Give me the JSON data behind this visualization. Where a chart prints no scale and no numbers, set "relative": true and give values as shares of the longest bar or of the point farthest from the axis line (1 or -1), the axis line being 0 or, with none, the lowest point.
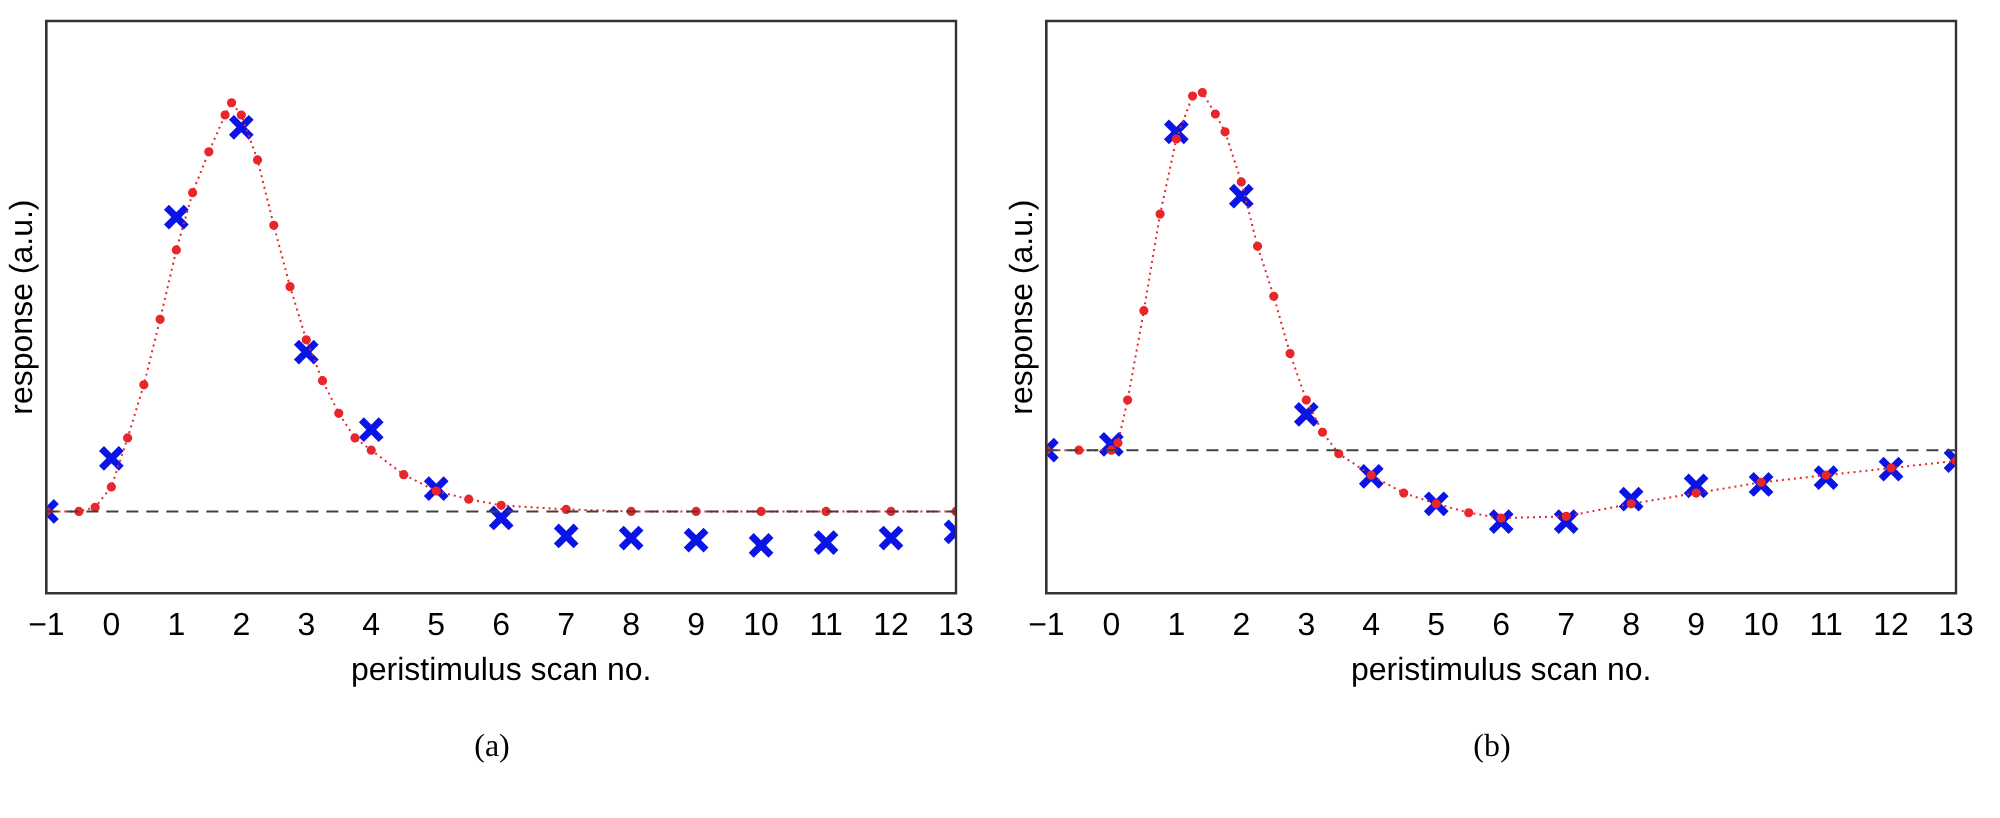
{
  "chart_data": [
    {
      "type": "line",
      "relative": true,
      "xlabel": "peristimulus scan no.",
      "ylabel": "response (a.u.)",
      "xlim": [
        -1,
        13
      ],
      "xticks": [
        -1,
        0,
        1,
        2,
        3,
        4,
        5,
        6,
        7,
        8,
        9,
        10,
        11,
        12,
        13
      ],
      "grid": false,
      "legend": false,
      "annotations": [
        "(a)"
      ],
      "ref_lines": [
        {
          "axis": "y",
          "value": 0,
          "color": "#404040",
          "line_style": "dashed"
        }
      ],
      "series": [
        {
          "color": "#e8262b",
          "marker": "circle",
          "line_style": "dotted",
          "x": [
            -1,
            -0.5,
            -0.25,
            0,
            0.25,
            0.5,
            0.75,
            1,
            1.25,
            1.5,
            1.75,
            1.85,
            2,
            2.25,
            2.5,
            2.75,
            3,
            3.25,
            3.5,
            3.75,
            4,
            4.5,
            5,
            5.5,
            6,
            7,
            8,
            9,
            10,
            11,
            12,
            13
          ],
          "values": [
            0,
            0,
            0.01,
            0.06,
            0.18,
            0.31,
            0.47,
            0.64,
            0.78,
            0.88,
            0.97,
            1,
            0.97,
            0.86,
            0.7,
            0.55,
            0.42,
            0.32,
            0.24,
            0.18,
            0.15,
            0.09,
            0.05,
            0.03,
            0.015,
            0.005,
            0,
            0,
            0,
            0,
            0,
            0
          ]
        },
        {
          "type": "scatter",
          "color": "#0b14e6",
          "marker": "cross",
          "x": [
            -1,
            0,
            1,
            2,
            3,
            4,
            5,
            6,
            7,
            8,
            9,
            10,
            11,
            12,
            13
          ],
          "values": [
            0,
            0.13,
            0.72,
            0.94,
            0.39,
            0.2,
            0.056,
            -0.016,
            -0.06,
            -0.065,
            -0.07,
            -0.083,
            -0.076,
            -0.065,
            -0.05
          ]
        }
      ]
    },
    {
      "type": "line",
      "relative": true,
      "xlabel": "peristimulus scan no.",
      "ylabel": "response (a.u.)",
      "xlim": [
        -1,
        13
      ],
      "xticks": [
        -1,
        0,
        1,
        2,
        3,
        4,
        5,
        6,
        7,
        8,
        9,
        10,
        11,
        12,
        13
      ],
      "grid": false,
      "legend": false,
      "annotations": [
        "(b)"
      ],
      "ref_lines": [
        {
          "axis": "y",
          "value": 0,
          "color": "#404040",
          "line_style": "dashed"
        }
      ],
      "series": [
        {
          "color": "#e8262b",
          "marker": "circle",
          "line_style": "dotted",
          "x": [
            -1,
            -0.5,
            0,
            0.1,
            0.25,
            0.5,
            0.75,
            1,
            1.25,
            1.4,
            1.6,
            1.75,
            2,
            2.25,
            2.5,
            2.75,
            3,
            3.25,
            3.5,
            4,
            4.5,
            5,
            5.5,
            6,
            7,
            8,
            9,
            10,
            11,
            12,
            13
          ],
          "values": [
            0,
            0,
            0,
            0.02,
            0.14,
            0.39,
            0.66,
            0.87,
            0.99,
            1,
            0.94,
            0.89,
            0.75,
            0.57,
            0.43,
            0.27,
            0.14,
            0.05,
            -0.01,
            -0.07,
            -0.12,
            -0.15,
            -0.175,
            -0.19,
            -0.185,
            -0.15,
            -0.12,
            -0.09,
            -0.07,
            -0.05,
            -0.03
          ]
        },
        {
          "type": "scatter",
          "color": "#0b14e6",
          "marker": "cross",
          "x": [
            -1,
            0,
            1,
            2,
            3,
            4,
            5,
            6,
            7,
            8,
            9,
            10,
            11,
            12,
            13
          ],
          "values": [
            0,
            0.016,
            0.89,
            0.71,
            0.1,
            -0.073,
            -0.15,
            -0.2,
            -0.2,
            -0.137,
            -0.1,
            -0.096,
            -0.077,
            -0.053,
            -0.029
          ]
        }
      ]
    }
  ]
}
